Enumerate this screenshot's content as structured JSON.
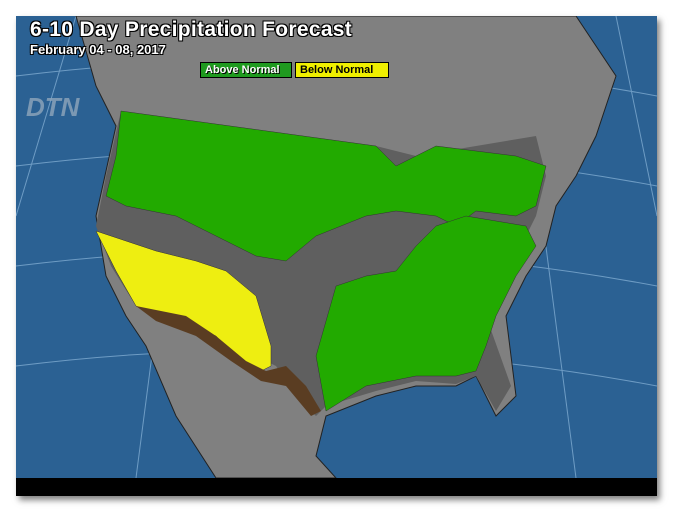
{
  "title": "6-10 Day Precipitation Forecast",
  "subtitle": "February 04 - 08, 2017",
  "legend": [
    {
      "label": "Above Normal",
      "color": "#1f9a1f"
    },
    {
      "label": "Below Normal",
      "color": "#f0f000"
    }
  ],
  "logo": "DTN",
  "colors": {
    "ocean": "#2b6193",
    "land": "#808080",
    "neutral": "#5f5f5f",
    "above": "#22aa00",
    "below": "#eeee11",
    "mexico_coast": "#5a3d22"
  }
}
